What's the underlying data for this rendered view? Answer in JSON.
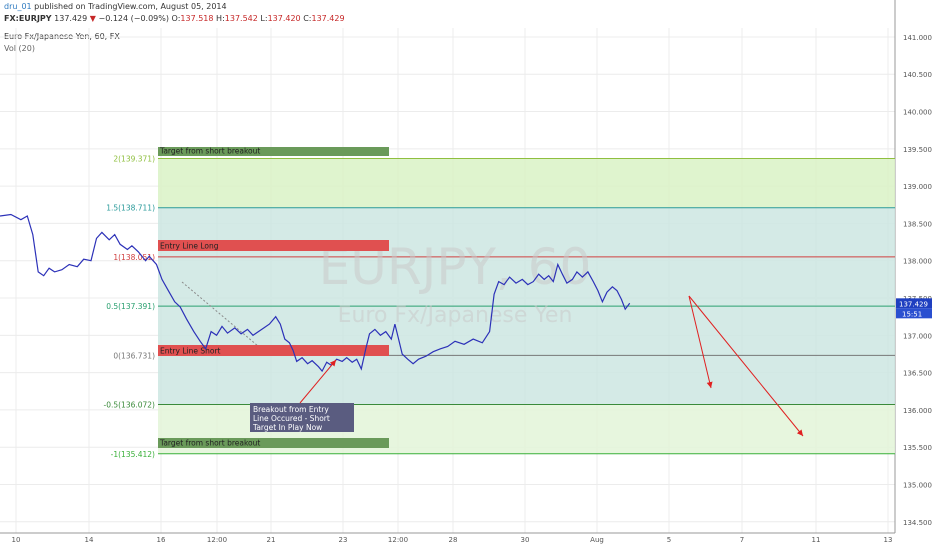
{
  "header": {
    "user": "dru_01",
    "published_text": " published on TradingView.com, August 05, 2014",
    "ticker": "FX:EURJPY",
    "last": "137.429",
    "change": "−0.124 (−0.09%)",
    "open_label": "O:",
    "open": "137.518",
    "high_label": "H:",
    "high": "137.542",
    "low_label": "L:",
    "low": "137.420",
    "close_label": "C:",
    "close": "137.429",
    "instrument": "Euro Fx/Japanese Yen, 60, FX",
    "indicator": "Vol (20)"
  },
  "watermark": {
    "symbol": "EURJPY, 60",
    "name": "Euro Fx/Japanese Yen"
  },
  "price_tag": {
    "value": "137.429",
    "time": "15:51"
  },
  "colors": {
    "price_line": "#2c31b8",
    "fib_band_green": "#d9f2c6",
    "fib_band_teal": "#cde6e2",
    "fib_band_light": "#e3f5d8",
    "label_red": "#e05050",
    "label_green": "#6a9a5a",
    "arrow": "#e02020",
    "annotation_bg": "#5a5c80",
    "price_tag": "#1f3fc0"
  },
  "annotations": {
    "target_top": "Target from short breakout",
    "entry_long": "Entry Line Long",
    "entry_short": "Entry Line Short",
    "target_bottom": "Target from short breakout",
    "callout": [
      "Breakout from Entry",
      "Line Occured - Short",
      "Target In Play Now"
    ]
  },
  "chart_data": {
    "type": "line",
    "title": "EURJPY, 60",
    "ylim": [
      134.4,
      141.1
    ],
    "y_ticks": [
      134.5,
      135.0,
      135.5,
      136.0,
      136.5,
      137.0,
      137.5,
      138.0,
      138.5,
      139.0,
      139.5,
      140.0,
      140.5,
      141.0
    ],
    "y_tick_labels": [
      "134.500",
      "135.000",
      "135.500",
      "136.000",
      "136.500",
      "137.000",
      "137.500",
      "138.000",
      "138.500",
      "139.000",
      "139.500",
      "140.000",
      "140.500",
      "141.000"
    ],
    "x_tick_labels": [
      "10",
      "14",
      "16",
      "12:00",
      "21",
      "23",
      "12:00",
      "28",
      "30",
      "Aug",
      "5",
      "7",
      "11",
      "13"
    ],
    "fib_levels": [
      {
        "label": "2(139.371)",
        "value": 139.371,
        "color": "#8fbf3f"
      },
      {
        "label": "1.5(138.711)",
        "value": 138.711,
        "color": "#2a9a9a"
      },
      {
        "label": "1(138.051)",
        "value": 138.051,
        "color": "#d04040"
      },
      {
        "label": "0.5(137.391)",
        "value": 137.391,
        "color": "#2aa070"
      },
      {
        "label": "0(136.731)",
        "value": 136.731,
        "color": "#777777"
      },
      {
        "label": "-0.5(136.072)",
        "value": 136.072,
        "color": "#3a8a3a"
      },
      {
        "label": "-1(135.412)",
        "value": 135.412,
        "color": "#3ab03a"
      }
    ],
    "series": [
      {
        "values": [
          [
            0,
            138.6
          ],
          [
            1.2,
            138.62
          ],
          [
            2.3,
            138.55
          ],
          [
            3,
            138.6
          ],
          [
            3.6,
            138.35
          ],
          [
            4.2,
            137.85
          ],
          [
            4.8,
            137.8
          ],
          [
            5.4,
            137.9
          ],
          [
            6,
            137.85
          ],
          [
            6.8,
            137.88
          ],
          [
            7.6,
            137.95
          ],
          [
            8.5,
            137.92
          ],
          [
            9.2,
            138.02
          ],
          [
            10,
            138.0
          ],
          [
            10.6,
            138.3
          ],
          [
            11.2,
            138.38
          ],
          [
            12,
            138.28
          ],
          [
            12.6,
            138.35
          ],
          [
            13.2,
            138.22
          ],
          [
            14,
            138.15
          ],
          [
            14.5,
            138.2
          ],
          [
            15.2,
            138.12
          ],
          [
            16,
            138.0
          ],
          [
            16.4,
            138.06
          ],
          [
            17.2,
            137.95
          ],
          [
            17.8,
            137.75
          ],
          [
            18.5,
            137.6
          ],
          [
            19.2,
            137.45
          ],
          [
            19.8,
            137.38
          ],
          [
            20.5,
            137.22
          ],
          [
            21.3,
            137.05
          ],
          [
            22,
            136.92
          ],
          [
            22.6,
            136.82
          ],
          [
            23.2,
            137.05
          ],
          [
            23.8,
            137.0
          ],
          [
            24.4,
            137.12
          ],
          [
            25,
            137.03
          ],
          [
            25.8,
            137.1
          ],
          [
            26.5,
            137.02
          ],
          [
            27.2,
            137.08
          ],
          [
            27.8,
            137.0
          ],
          [
            28.4,
            137.05
          ],
          [
            29,
            137.1
          ],
          [
            29.6,
            137.15
          ],
          [
            30.3,
            137.25
          ],
          [
            30.8,
            137.15
          ],
          [
            31.3,
            136.95
          ],
          [
            31.8,
            136.9
          ],
          [
            32.2,
            136.8
          ],
          [
            32.6,
            136.65
          ],
          [
            33.2,
            136.7
          ],
          [
            33.8,
            136.62
          ],
          [
            34.3,
            136.66
          ],
          [
            35,
            136.58
          ],
          [
            35.4,
            136.52
          ],
          [
            35.9,
            136.64
          ],
          [
            36.4,
            136.6
          ],
          [
            37,
            136.68
          ],
          [
            37.6,
            136.65
          ],
          [
            38.1,
            136.7
          ],
          [
            38.7,
            136.64
          ],
          [
            39.2,
            136.68
          ],
          [
            39.7,
            136.55
          ],
          [
            40.2,
            136.82
          ],
          [
            40.6,
            137.02
          ],
          [
            41.2,
            137.08
          ],
          [
            41.8,
            137.0
          ],
          [
            42.4,
            137.05
          ],
          [
            43,
            136.95
          ],
          [
            43.4,
            137.15
          ],
          [
            43.8,
            136.95
          ],
          [
            44.2,
            136.75
          ],
          [
            44.8,
            136.68
          ],
          [
            45.4,
            136.62
          ],
          [
            46,
            136.68
          ],
          [
            46.8,
            136.72
          ],
          [
            47.6,
            136.78
          ],
          [
            48.4,
            136.82
          ],
          [
            49.2,
            136.85
          ],
          [
            50,
            136.92
          ],
          [
            51,
            136.88
          ],
          [
            52,
            136.95
          ],
          [
            53,
            136.9
          ],
          [
            53.8,
            137.05
          ],
          [
            54.3,
            137.55
          ],
          [
            54.8,
            137.72
          ],
          [
            55.4,
            137.68
          ],
          [
            56,
            137.78
          ],
          [
            56.7,
            137.7
          ],
          [
            57.4,
            137.75
          ],
          [
            58,
            137.68
          ],
          [
            58.6,
            137.72
          ],
          [
            59.2,
            137.82
          ],
          [
            59.8,
            137.75
          ],
          [
            60.3,
            137.8
          ],
          [
            60.8,
            137.72
          ],
          [
            61.3,
            137.95
          ],
          [
            61.8,
            137.82
          ],
          [
            62.3,
            137.7
          ],
          [
            62.9,
            137.75
          ],
          [
            63.4,
            137.85
          ],
          [
            64,
            137.78
          ],
          [
            64.6,
            137.85
          ],
          [
            65.2,
            137.72
          ],
          [
            65.7,
            137.6
          ],
          [
            66.2,
            137.45
          ],
          [
            66.7,
            137.58
          ],
          [
            67.3,
            137.65
          ],
          [
            67.8,
            137.6
          ],
          [
            68.3,
            137.48
          ],
          [
            68.7,
            137.35
          ],
          [
            69.2,
            137.43
          ]
        ]
      }
    ]
  }
}
